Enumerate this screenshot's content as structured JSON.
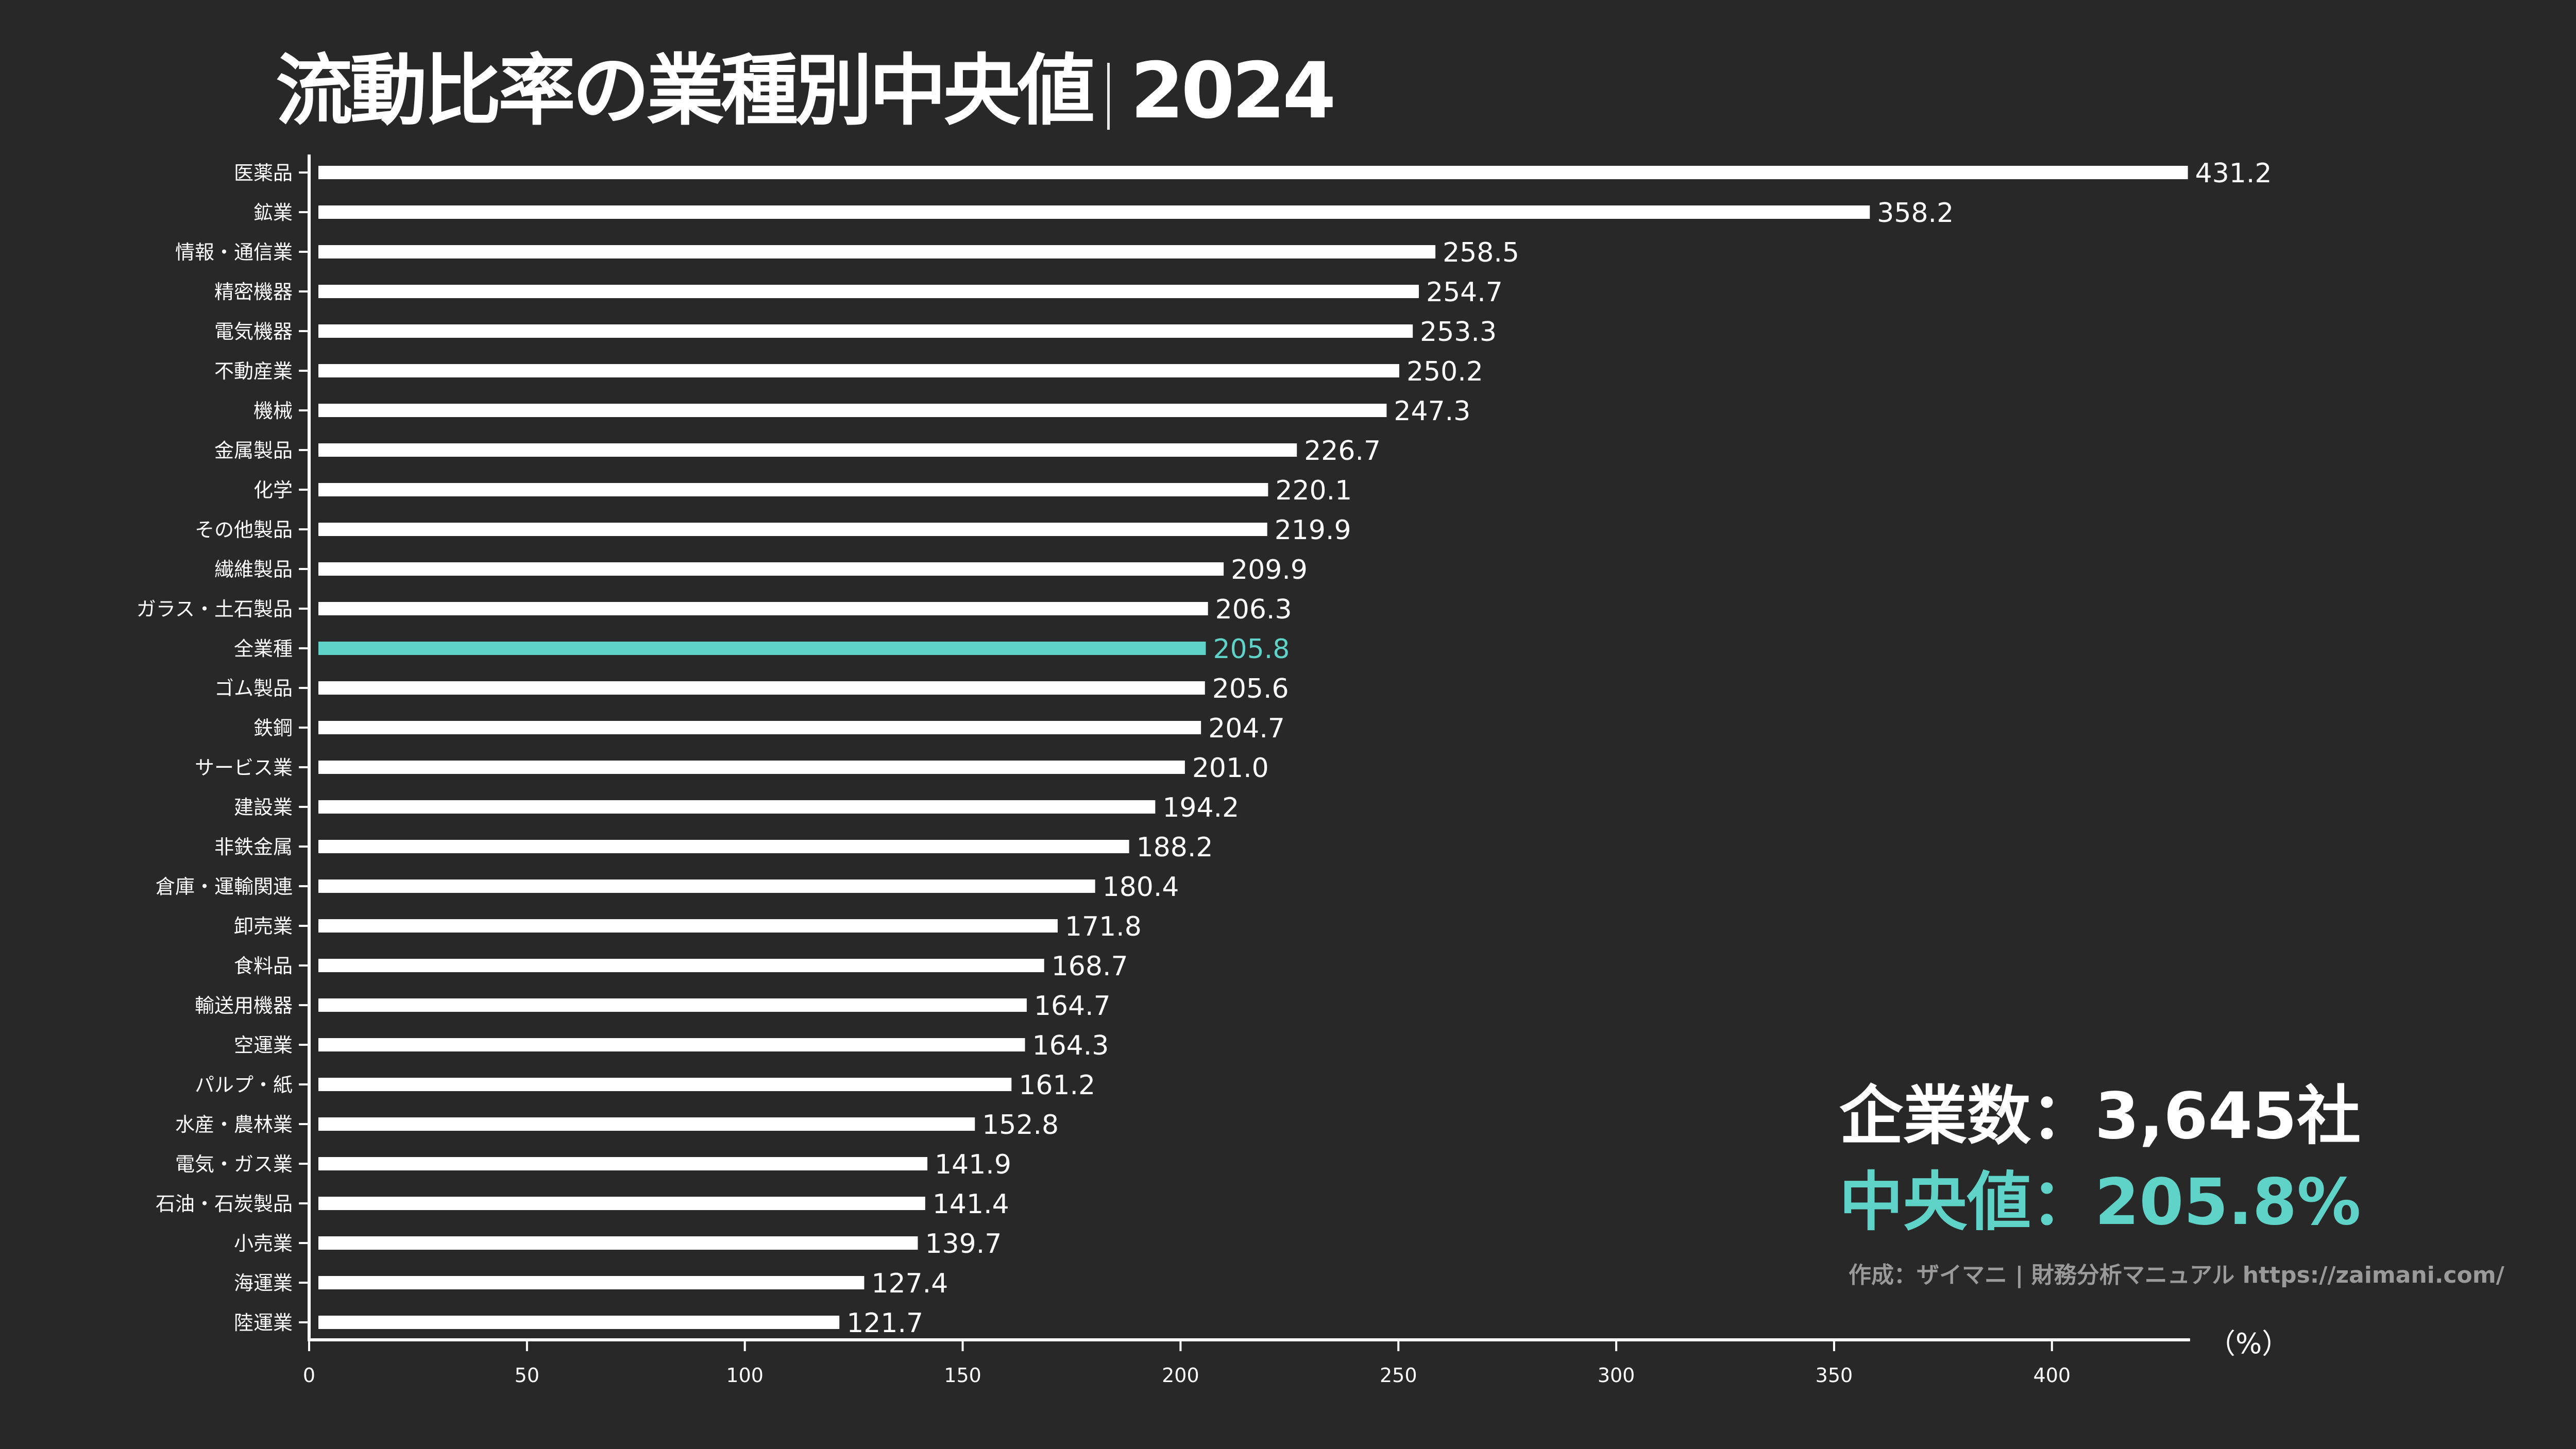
{
  "header": {
    "title_main": "流動比率の業種別中央値",
    "title_year": "2024"
  },
  "summary": {
    "count_label": "企業数",
    "count_value": "3,645社",
    "median_label": "中央値",
    "median_value": "205.8%",
    "separator": "："
  },
  "credit": "作成：ザイマニ | 財務分析マニュアル https://zaimani.com/",
  "colors": {
    "background": "#282828",
    "bar": "#ffffff",
    "highlight": "#5fd3c8",
    "credit": "#9a9a9a"
  },
  "chart_data": {
    "type": "bar",
    "orientation": "horizontal",
    "title": "流動比率の業種別中央値｜2024",
    "xlabel": "",
    "ylabel": "",
    "unit_label": "（%）",
    "xlim": [
      0,
      432
    ],
    "xticks": [
      0,
      50,
      100,
      150,
      200,
      250,
      300,
      350,
      400
    ],
    "grid": false,
    "highlight_category": "全業種",
    "categories": [
      "医薬品",
      "鉱業",
      "情報・通信業",
      "精密機器",
      "電気機器",
      "不動産業",
      "機械",
      "金属製品",
      "化学",
      "その他製品",
      "繊維製品",
      "ガラス・土石製品",
      "全業種",
      "ゴム製品",
      "鉄鋼",
      "サービス業",
      "建設業",
      "非鉄金属",
      "倉庫・運輸関連",
      "卸売業",
      "食料品",
      "輸送用機器",
      "空運業",
      "パルプ・紙",
      "水産・農林業",
      "電気・ガス業",
      "石油・石炭製品",
      "小売業",
      "海運業",
      "陸運業"
    ],
    "values": [
      431.2,
      358.2,
      258.5,
      254.7,
      253.3,
      250.2,
      247.3,
      226.7,
      220.1,
      219.9,
      209.9,
      206.3,
      205.8,
      205.6,
      204.7,
      201.0,
      194.2,
      188.2,
      180.4,
      171.8,
      168.7,
      164.7,
      164.3,
      161.2,
      152.8,
      141.9,
      141.4,
      139.7,
      127.4,
      121.7
    ],
    "value_labels": [
      "431.2",
      "358.2",
      "258.5",
      "254.7",
      "253.3",
      "250.2",
      "247.3",
      "226.7",
      "220.1",
      "219.9",
      "209.9",
      "206.3",
      "205.8",
      "205.6",
      "204.7",
      "201.0",
      "194.2",
      "188.2",
      "180.4",
      "171.8",
      "168.7",
      "164.7",
      "164.3",
      "161.2",
      "152.8",
      "141.9",
      "141.4",
      "139.7",
      "127.4",
      "121.7"
    ]
  }
}
